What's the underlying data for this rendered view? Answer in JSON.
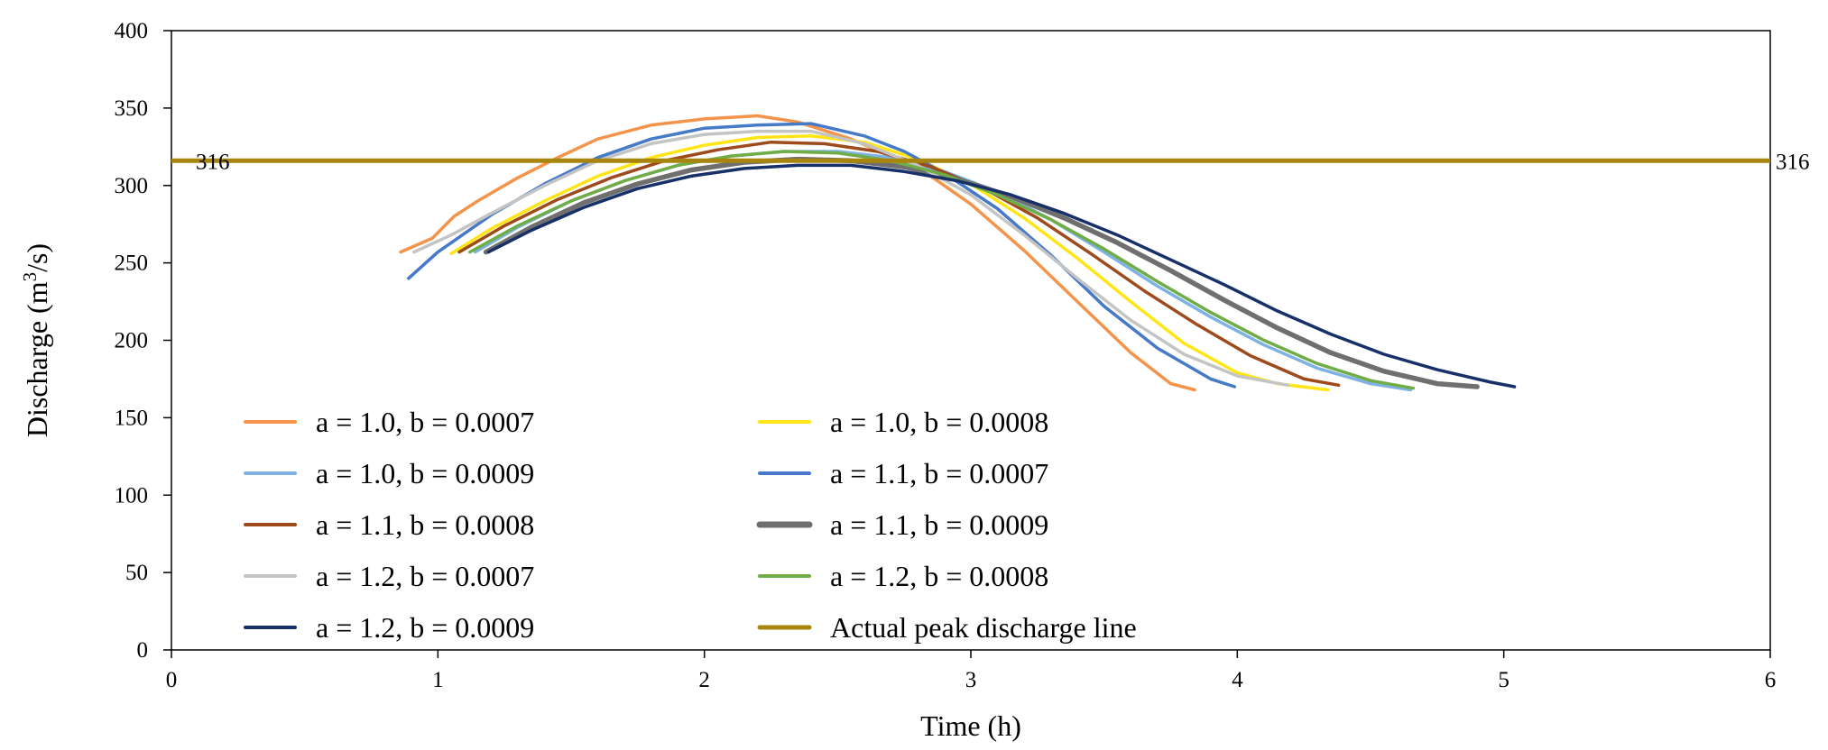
{
  "chart_data": {
    "type": "line",
    "title": "",
    "xlabel": "Time (h)",
    "ylabel": "Discharge (m³/s)",
    "xlim": [
      0,
      6
    ],
    "ylim": [
      0,
      400
    ],
    "xticks": [
      "0",
      "1",
      "2",
      "3",
      "4",
      "5",
      "6"
    ],
    "yticks": [
      "0",
      "50",
      "100",
      "150",
      "200",
      "250",
      "300",
      "350",
      "400"
    ],
    "grid": false,
    "reference_line": {
      "name": "Actual peak discharge line",
      "value": 316,
      "left_label": "316",
      "right_label": "316",
      "color": "#A8860D"
    },
    "series": [
      {
        "name": "a = 1.0, b = 0.0007",
        "color": "#F4944A",
        "width": 3.5,
        "points": [
          [
            0.86,
            257
          ],
          [
            0.98,
            266
          ],
          [
            1.06,
            280
          ],
          [
            1.15,
            290
          ],
          [
            1.3,
            305
          ],
          [
            1.45,
            318
          ],
          [
            1.6,
            330
          ],
          [
            1.8,
            339
          ],
          [
            2.0,
            343
          ],
          [
            2.2,
            345
          ],
          [
            2.35,
            341
          ],
          [
            2.55,
            330
          ],
          [
            2.8,
            312
          ],
          [
            3.0,
            288
          ],
          [
            3.2,
            258
          ],
          [
            3.4,
            225
          ],
          [
            3.6,
            192
          ],
          [
            3.75,
            172
          ],
          [
            3.84,
            168
          ]
        ]
      },
      {
        "name": "a = 1.0, b = 0.0008",
        "color": "#FFE516",
        "width": 3.5,
        "points": [
          [
            1.05,
            256
          ],
          [
            1.2,
            272
          ],
          [
            1.4,
            290
          ],
          [
            1.6,
            306
          ],
          [
            1.8,
            318
          ],
          [
            2.0,
            326
          ],
          [
            2.2,
            331
          ],
          [
            2.4,
            332
          ],
          [
            2.6,
            328
          ],
          [
            2.8,
            317
          ],
          [
            3.0,
            301
          ],
          [
            3.2,
            279
          ],
          [
            3.4,
            253
          ],
          [
            3.6,
            225
          ],
          [
            3.8,
            198
          ],
          [
            4.0,
            179
          ],
          [
            4.15,
            172
          ],
          [
            4.34,
            168
          ]
        ]
      },
      {
        "name": "a = 1.0, b = 0.0009",
        "color": "#7EB2E3",
        "width": 3.5,
        "points": [
          [
            1.14,
            257
          ],
          [
            1.3,
            273
          ],
          [
            1.5,
            290
          ],
          [
            1.7,
            303
          ],
          [
            1.9,
            313
          ],
          [
            2.1,
            319
          ],
          [
            2.3,
            322
          ],
          [
            2.5,
            322
          ],
          [
            2.7,
            318
          ],
          [
            2.9,
            309
          ],
          [
            3.1,
            296
          ],
          [
            3.3,
            278
          ],
          [
            3.5,
            257
          ],
          [
            3.7,
            235
          ],
          [
            3.9,
            215
          ],
          [
            4.1,
            197
          ],
          [
            4.3,
            182
          ],
          [
            4.5,
            172
          ],
          [
            4.65,
            168
          ]
        ]
      },
      {
        "name": "a = 1.1, b = 0.0007",
        "color": "#4679C8",
        "width": 3.5,
        "points": [
          [
            0.89,
            240
          ],
          [
            1.0,
            257
          ],
          [
            1.2,
            281
          ],
          [
            1.4,
            301
          ],
          [
            1.6,
            318
          ],
          [
            1.8,
            330
          ],
          [
            2.0,
            337
          ],
          [
            2.2,
            339
          ],
          [
            2.4,
            340
          ],
          [
            2.6,
            332
          ],
          [
            2.75,
            322
          ],
          [
            2.9,
            308
          ],
          [
            3.1,
            285
          ],
          [
            3.3,
            255
          ],
          [
            3.5,
            222
          ],
          [
            3.7,
            195
          ],
          [
            3.9,
            175
          ],
          [
            3.99,
            170
          ]
        ]
      },
      {
        "name": "a = 1.1, b = 0.0008",
        "color": "#9E4A1C",
        "width": 3.5,
        "points": [
          [
            1.08,
            257
          ],
          [
            1.25,
            274
          ],
          [
            1.45,
            291
          ],
          [
            1.65,
            305
          ],
          [
            1.85,
            316
          ],
          [
            2.05,
            323
          ],
          [
            2.25,
            328
          ],
          [
            2.45,
            327
          ],
          [
            2.65,
            322
          ],
          [
            2.85,
            312
          ],
          [
            3.05,
            298
          ],
          [
            3.25,
            279
          ],
          [
            3.45,
            256
          ],
          [
            3.65,
            232
          ],
          [
            3.85,
            210
          ],
          [
            4.05,
            190
          ],
          [
            4.25,
            175
          ],
          [
            4.38,
            171
          ]
        ]
      },
      {
        "name": "a = 1.1, b = 0.0009",
        "color": "#6F6F6F",
        "width": 5.5,
        "points": [
          [
            1.18,
            257
          ],
          [
            1.35,
            273
          ],
          [
            1.55,
            289
          ],
          [
            1.75,
            301
          ],
          [
            1.95,
            310
          ],
          [
            2.15,
            315
          ],
          [
            2.35,
            317
          ],
          [
            2.55,
            316
          ],
          [
            2.75,
            312
          ],
          [
            2.95,
            304
          ],
          [
            3.15,
            293
          ],
          [
            3.35,
            279
          ],
          [
            3.55,
            263
          ],
          [
            3.75,
            245
          ],
          [
            3.95,
            226
          ],
          [
            4.15,
            208
          ],
          [
            4.35,
            192
          ],
          [
            4.55,
            180
          ],
          [
            4.75,
            172
          ],
          [
            4.9,
            170
          ]
        ]
      },
      {
        "name": "a = 1.2, b = 0.0007",
        "color": "#C4C4C4",
        "width": 3.5,
        "points": [
          [
            0.91,
            257
          ],
          [
            1.05,
            268
          ],
          [
            1.2,
            282
          ],
          [
            1.4,
            300
          ],
          [
            1.6,
            316
          ],
          [
            1.8,
            327
          ],
          [
            2.0,
            333
          ],
          [
            2.2,
            335
          ],
          [
            2.4,
            335
          ],
          [
            2.6,
            327
          ],
          [
            2.8,
            313
          ],
          [
            3.0,
            294
          ],
          [
            3.2,
            268
          ],
          [
            3.4,
            240
          ],
          [
            3.6,
            213
          ],
          [
            3.8,
            191
          ],
          [
            4.0,
            177
          ],
          [
            4.19,
            171
          ]
        ]
      },
      {
        "name": "a = 1.2, b = 0.0008",
        "color": "#70AD47",
        "width": 3.5,
        "points": [
          [
            1.12,
            257
          ],
          [
            1.3,
            274
          ],
          [
            1.5,
            290
          ],
          [
            1.7,
            303
          ],
          [
            1.9,
            313
          ],
          [
            2.1,
            319
          ],
          [
            2.3,
            322
          ],
          [
            2.5,
            321
          ],
          [
            2.7,
            316
          ],
          [
            2.9,
            307
          ],
          [
            3.1,
            294
          ],
          [
            3.3,
            278
          ],
          [
            3.5,
            259
          ],
          [
            3.7,
            238
          ],
          [
            3.9,
            218
          ],
          [
            4.1,
            200
          ],
          [
            4.3,
            185
          ],
          [
            4.5,
            174
          ],
          [
            4.66,
            169
          ]
        ]
      },
      {
        "name": "a = 1.2, b = 0.0009",
        "color": "#17306A",
        "width": 3.5,
        "points": [
          [
            1.19,
            257
          ],
          [
            1.35,
            271
          ],
          [
            1.55,
            286
          ],
          [
            1.75,
            298
          ],
          [
            1.95,
            306
          ],
          [
            2.15,
            311
          ],
          [
            2.35,
            313
          ],
          [
            2.55,
            313
          ],
          [
            2.75,
            309
          ],
          [
            2.95,
            303
          ],
          [
            3.15,
            294
          ],
          [
            3.35,
            282
          ],
          [
            3.55,
            268
          ],
          [
            3.75,
            252
          ],
          [
            3.95,
            236
          ],
          [
            4.15,
            219
          ],
          [
            4.35,
            204
          ],
          [
            4.55,
            191
          ],
          [
            4.75,
            181
          ],
          [
            4.95,
            173
          ],
          [
            5.04,
            170
          ]
        ]
      }
    ],
    "legend": {
      "placement": "lower-left",
      "entries": [
        {
          "label": "a = 1.0, b = 0.0007",
          "color": "#F4944A"
        },
        {
          "label": "a = 1.0, b = 0.0008",
          "color": "#FFE516"
        },
        {
          "label": "a = 1.0, b = 0.0009",
          "color": "#7EB2E3"
        },
        {
          "label": "a = 1.1, b = 0.0007",
          "color": "#4679C8"
        },
        {
          "label": "a = 1.1, b = 0.0008",
          "color": "#9E4A1C"
        },
        {
          "label": "a = 1.1, b = 0.0009",
          "color": "#6F6F6F"
        },
        {
          "label": "a = 1.2, b = 0.0007",
          "color": "#C4C4C4"
        },
        {
          "label": "a = 1.2, b = 0.0008",
          "color": "#70AD47"
        },
        {
          "label": "a = 1.2, b = 0.0009",
          "color": "#17306A"
        },
        {
          "label": "Actual peak discharge line",
          "color": "#A8860D"
        }
      ]
    }
  }
}
